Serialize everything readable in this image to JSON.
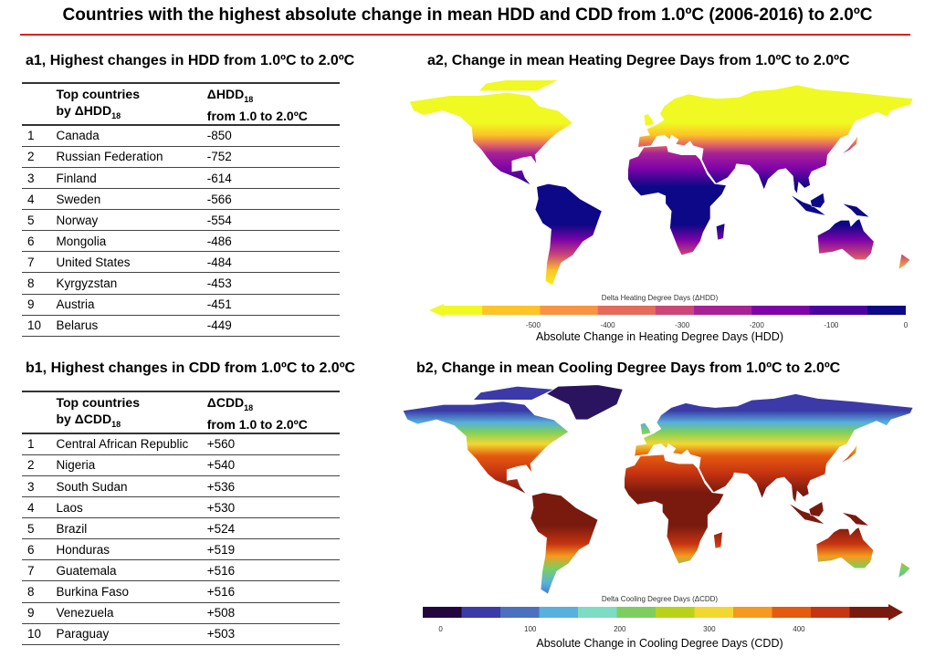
{
  "title": "Countries with the highest absolute change in mean HDD and CDD from 1.0ºC (2006-2016) to 2.0ºC",
  "accent_color": "#e0201c",
  "hdd_table": {
    "heading": "a1, Highest changes in HDD from 1.0ºC to 2.0ºC",
    "col1_line1": "Top countries",
    "col1_line2": "by ΔHDD",
    "col1_sub": "18",
    "col2_line1": "ΔHDD",
    "col2_sub": "18",
    "col2_line2": "from 1.0 to 2.0ºC",
    "rows": [
      {
        "rank": "1",
        "country": "Canada",
        "value": "-850"
      },
      {
        "rank": "2",
        "country": "Russian Federation",
        "value": "-752"
      },
      {
        "rank": "3",
        "country": "Finland",
        "value": "-614"
      },
      {
        "rank": "4",
        "country": "Sweden",
        "value": "-566"
      },
      {
        "rank": "5",
        "country": "Norway",
        "value": "-554"
      },
      {
        "rank": "6",
        "country": "Mongolia",
        "value": "-486"
      },
      {
        "rank": "7",
        "country": "United States",
        "value": "-484"
      },
      {
        "rank": "8",
        "country": "Kyrgyzstan",
        "value": "-453"
      },
      {
        "rank": "9",
        "country": "Austria",
        "value": "-451"
      },
      {
        "rank": "10",
        "country": "Belarus",
        "value": "-449"
      }
    ]
  },
  "cdd_table": {
    "heading": "b1, Highest changes in CDD from 1.0ºC to 2.0ºC",
    "col1_line1": "Top countries",
    "col1_line2": "by ΔCDD",
    "col1_sub": "18",
    "col2_line1": "ΔCDD",
    "col2_sub": "18",
    "col2_line2": "from 1.0 to 2.0ºC",
    "rows": [
      {
        "rank": "1",
        "country": "Central African Republic",
        "value": "+560"
      },
      {
        "rank": "2",
        "country": "Nigeria",
        "value": "+540"
      },
      {
        "rank": "3",
        "country": "South Sudan",
        "value": "+536"
      },
      {
        "rank": "4",
        "country": "Laos",
        "value": "+530"
      },
      {
        "rank": "5",
        "country": "Brazil",
        "value": "+524"
      },
      {
        "rank": "6",
        "country": "Honduras",
        "value": "+519"
      },
      {
        "rank": "7",
        "country": "Guatemala",
        "value": "+516"
      },
      {
        "rank": "8",
        "country": "Burkina Faso",
        "value": "+516"
      },
      {
        "rank": "9",
        "country": "Venezuela",
        "value": "+508"
      },
      {
        "rank": "10",
        "country": "Paraguay",
        "value": "+503"
      }
    ]
  },
  "hdd_map": {
    "heading": "a2, Change in mean Heating Degree Days from 1.0ºC to 2.0ºC",
    "colorbar_label": "Delta Heating Degree Days (ΔHDD)",
    "ticks": [
      "-500",
      "-400",
      "-300",
      "-200",
      "-100",
      "0"
    ],
    "tick_values": [
      -500,
      -400,
      -300,
      -200,
      -100,
      0
    ],
    "range": [
      -620,
      0
    ],
    "axis_title": "Absolute Change in Heating Degree Days (HDD)",
    "colors": [
      "#f0f921",
      "#fdc328",
      "#f89441",
      "#e56b5d",
      "#cb4778",
      "#a82296",
      "#7e03a8",
      "#4c02a1",
      "#0d0887"
    ]
  },
  "cdd_map": {
    "heading": "b2, Change in mean Cooling Degree Days from 1.0ºC to 2.0ºC",
    "colorbar_label": "Delta Cooling Degree Days (ΔCDD)",
    "ticks": [
      "0",
      "100",
      "200",
      "300",
      "400"
    ],
    "tick_values": [
      0,
      100,
      200,
      300,
      400
    ],
    "range": [
      -20,
      500
    ],
    "axis_title": "Absolute Change in Cooling Degree Days (CDD)",
    "colors": [
      "#23063f",
      "#3b3aa8",
      "#4c70c0",
      "#57b0dd",
      "#7ddcc4",
      "#7ccf5e",
      "#b8d21a",
      "#f2d731",
      "#f59a1e",
      "#e45a0f",
      "#c73411",
      "#7a1a0e"
    ]
  }
}
